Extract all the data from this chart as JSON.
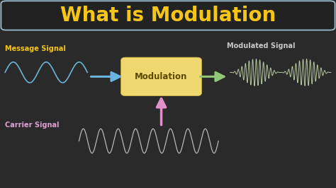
{
  "title": "What is Modulation",
  "title_color": "#F5C518",
  "title_fontsize": 20,
  "background_color": "#2a2a2a",
  "title_box_edge_color": "#a0c8d8",
  "title_box_bg": "#222222",
  "message_label": "Message Signal",
  "carrier_label": "Carrier Signal",
  "modulated_label": "Modulated Signal",
  "box_label": "Modulation",
  "message_color": "#6ab4d8",
  "carrier_color": "#b8b8b8",
  "modulated_color": "#b8c8a0",
  "label_color_message": "#F5C518",
  "label_color_carrier": "#e0a0d0",
  "label_color_modulated": "#c8c8c8",
  "arrow_msg_color": "#6ab4e0",
  "arrow_carrier_color": "#e090c8",
  "arrow_modulated_color": "#90c878",
  "box_face_color": "#f0d870",
  "box_edge_color": "#d4b840",
  "box_text_color": "#5a4a00"
}
